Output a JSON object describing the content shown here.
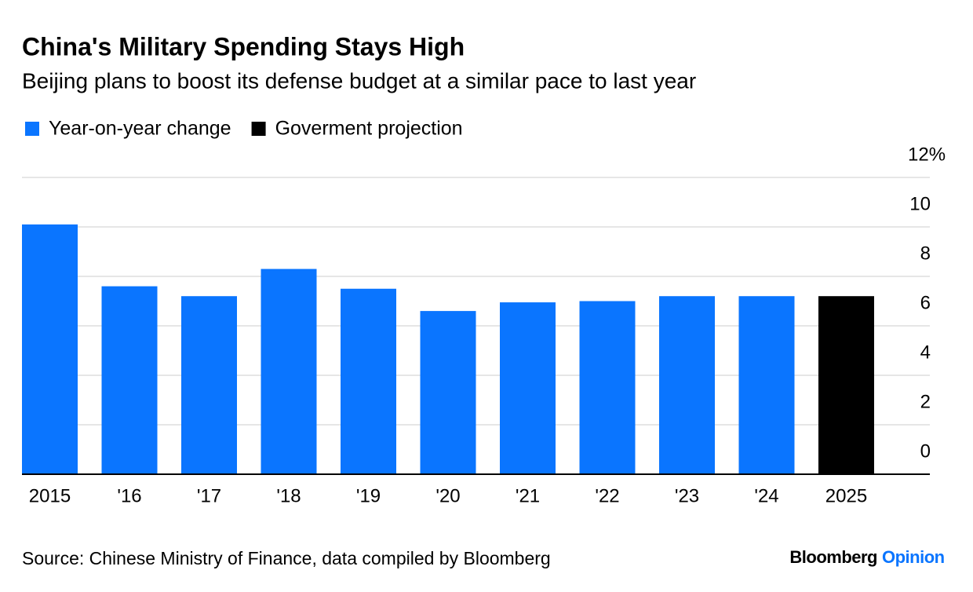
{
  "chart_data": {
    "type": "bar",
    "title": "China's Military Spending Stays High",
    "subtitle": "Beijing plans to boost its defense budget at a similar pace to last year",
    "categories": [
      "2015",
      "'16",
      "'17",
      "'18",
      "'19",
      "'20",
      "'21",
      "'22",
      "'23",
      "'24",
      "2025"
    ],
    "series": [
      {
        "name": "Year-on-year change",
        "color": "#0a75ff",
        "values": [
          10.1,
          7.6,
          7.2,
          8.3,
          7.5,
          6.6,
          6.95,
          7.0,
          7.2,
          7.2,
          null
        ]
      },
      {
        "name": "Goverment projection",
        "color": "#000000",
        "values": [
          null,
          null,
          null,
          null,
          null,
          null,
          null,
          null,
          null,
          null,
          7.2
        ]
      }
    ],
    "ylim": [
      0,
      12
    ],
    "yticks": [
      0,
      2,
      4,
      6,
      8,
      10,
      {
        "value": 12,
        "label": "12%"
      }
    ],
    "grid": true,
    "source": "Source: Chinese Ministry of Finance, data compiled by Bloomberg",
    "credit_name": "Bloomberg",
    "credit_product": "Opinion"
  }
}
